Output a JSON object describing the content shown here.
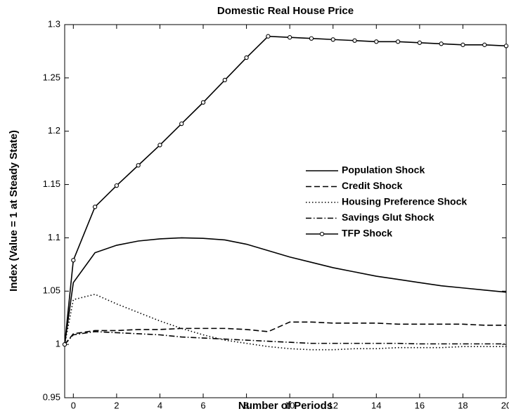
{
  "chart_data": {
    "type": "line",
    "title": "Domestic Real House Price",
    "x_label": "Number of Periods",
    "y_label": "Index (Value = 1 at Steady State)",
    "x": [
      -0.4,
      0,
      1,
      2,
      3,
      4,
      5,
      6,
      7,
      8,
      9,
      10,
      11,
      12,
      13,
      14,
      15,
      16,
      17,
      18,
      19,
      20
    ],
    "xlim": [
      -0.4,
      20
    ],
    "xticks": [
      0,
      2,
      4,
      6,
      8,
      10,
      12,
      14,
      16,
      18,
      20
    ],
    "ylim": [
      0.95,
      1.3
    ],
    "yticks": [
      0.95,
      1,
      1.05,
      1.1,
      1.15,
      1.2,
      1.25,
      1.3
    ],
    "grid": false,
    "legend": "center right",
    "series": [
      {
        "name": "Population Shock",
        "color": "#000000",
        "style": "solid",
        "marker": "none",
        "values": [
          1,
          1.058,
          1.086,
          1.093,
          1.097,
          1.099,
          1.1,
          1.0995,
          1.098,
          1.094,
          1.088,
          1.082,
          1.077,
          1.072,
          1.068,
          1.064,
          1.061,
          1.058,
          1.055,
          1.053,
          1.051,
          1.049
        ]
      },
      {
        "name": "Credit Shock",
        "color": "#000000",
        "style": "dashed",
        "marker": "none",
        "values": [
          1,
          1.01,
          1.013,
          1.013,
          1.014,
          1.014,
          1.015,
          1.015,
          1.015,
          1.014,
          1.012,
          1.021,
          1.021,
          1.02,
          1.02,
          1.02,
          1.019,
          1.019,
          1.019,
          1.019,
          1.018,
          1.018
        ]
      },
      {
        "name": "Housing Preference Shock",
        "color": "#000000",
        "style": "dotted",
        "marker": "none",
        "values": [
          1,
          1.042,
          1.047,
          1.038,
          1.03,
          1.022,
          1.015,
          1.009,
          1.004,
          1.001,
          0.998,
          0.996,
          0.995,
          0.995,
          0.996,
          0.996,
          0.997,
          0.997,
          0.997,
          0.998,
          0.998,
          0.998
        ]
      },
      {
        "name": "Savings Glut Shock",
        "color": "#000000",
        "style": "dashdot",
        "marker": "none",
        "values": [
          1,
          1.009,
          1.012,
          1.011,
          1.01,
          1.009,
          1.007,
          1.006,
          1.005,
          1.004,
          1.003,
          1.002,
          1.001,
          1.001,
          1.001,
          1.001,
          1.001,
          1.0005,
          1.0005,
          1.0005,
          1.0005,
          1.0005
        ]
      },
      {
        "name": "TFP Shock",
        "color": "#000000",
        "style": "solid",
        "marker": "circle",
        "values": [
          1,
          1.079,
          1.129,
          1.149,
          1.168,
          1.187,
          1.207,
          1.227,
          1.248,
          1.269,
          1.289,
          1.288,
          1.287,
          1.286,
          1.285,
          1.284,
          1.284,
          1.283,
          1.282,
          1.281,
          1.281,
          1.28
        ]
      }
    ]
  }
}
